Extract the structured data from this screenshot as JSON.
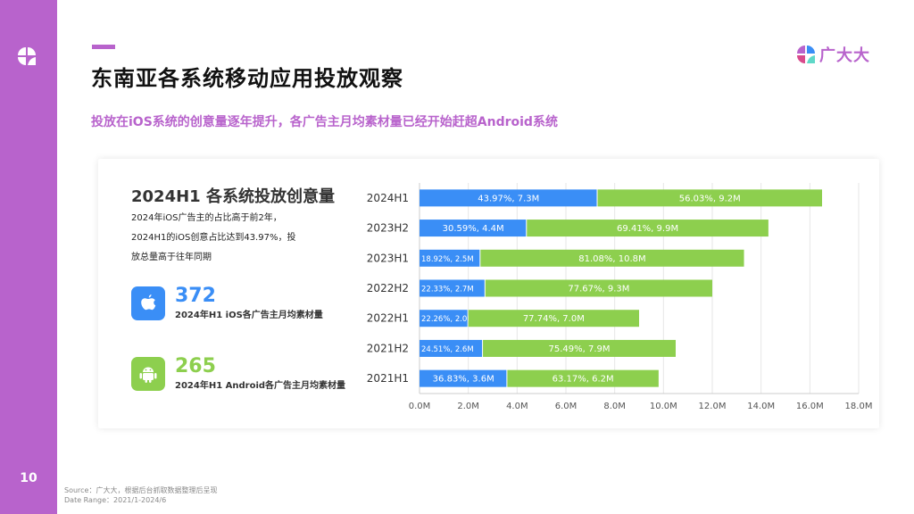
{
  "page": {
    "number": "10",
    "title": "东南亚各系统移动应用投放观察",
    "subtitle": "投放在iOS系统的创意量逐年提升，各广告主月均素材量已经开始赶超Android系统",
    "brand": "广大大",
    "accent_color": "#b863cc"
  },
  "panel": {
    "title": "2024H1 各系统投放创意量",
    "desc_lines": [
      "2024年iOS广告主的占比高于前2年，",
      "2024H1的iOS创意占比达到43.97%，投",
      "放总量高于往年同期"
    ],
    "stats": [
      {
        "icon": "apple-icon",
        "value": "372",
        "label": "2024年H1 iOS各广告主月均素材量",
        "color": "#3a8ef6"
      },
      {
        "icon": "android-icon",
        "value": "265",
        "label": "2024年H1 Android各广告主月均素材量",
        "color": "#8dcf4e"
      }
    ]
  },
  "chart_data": {
    "type": "bar",
    "orientation": "horizontal",
    "stacked": true,
    "categories": [
      "2024H1",
      "2023H2",
      "2023H1",
      "2022H2",
      "2022H1",
      "2021H2",
      "2021H1"
    ],
    "series": [
      {
        "name": "iOS",
        "color": "#3a8ef6",
        "values": [
          7.3,
          4.4,
          2.5,
          2.7,
          2.0,
          2.6,
          3.6
        ],
        "labels": [
          "43.97%, 7.3M",
          "30.59%, 4.4M",
          "18.92%, 2.5M",
          "22.33%, 2.7M",
          "22.26%, 2.0M",
          "24.51%, 2.6M",
          "36.83%, 3.6M"
        ]
      },
      {
        "name": "Android",
        "color": "#8dcf4e",
        "values": [
          9.2,
          9.9,
          10.8,
          9.3,
          7.0,
          7.9,
          6.2
        ],
        "labels": [
          "56.03%, 9.2M",
          "69.41%, 9.9M",
          "81.08%, 10.8M",
          "77.67%, 9.3M",
          "77.74%, 7.0M",
          "75.49%, 7.9M",
          "63.17%, 6.2M"
        ]
      }
    ],
    "xlim": [
      0,
      18
    ],
    "xticks": [
      "0.0M",
      "2.0M",
      "4.0M",
      "6.0M",
      "8.0M",
      "10.0M",
      "12.0M",
      "14.0M",
      "16.0M",
      "18.0M"
    ],
    "xtick_values": [
      0,
      2,
      4,
      6,
      8,
      10,
      12,
      14,
      16,
      18
    ],
    "grid": true
  },
  "footer": {
    "source": "Source：广大大，根据后台抓取数据整理后呈现",
    "date_range": "Date Range：2021/1-2024/6"
  }
}
